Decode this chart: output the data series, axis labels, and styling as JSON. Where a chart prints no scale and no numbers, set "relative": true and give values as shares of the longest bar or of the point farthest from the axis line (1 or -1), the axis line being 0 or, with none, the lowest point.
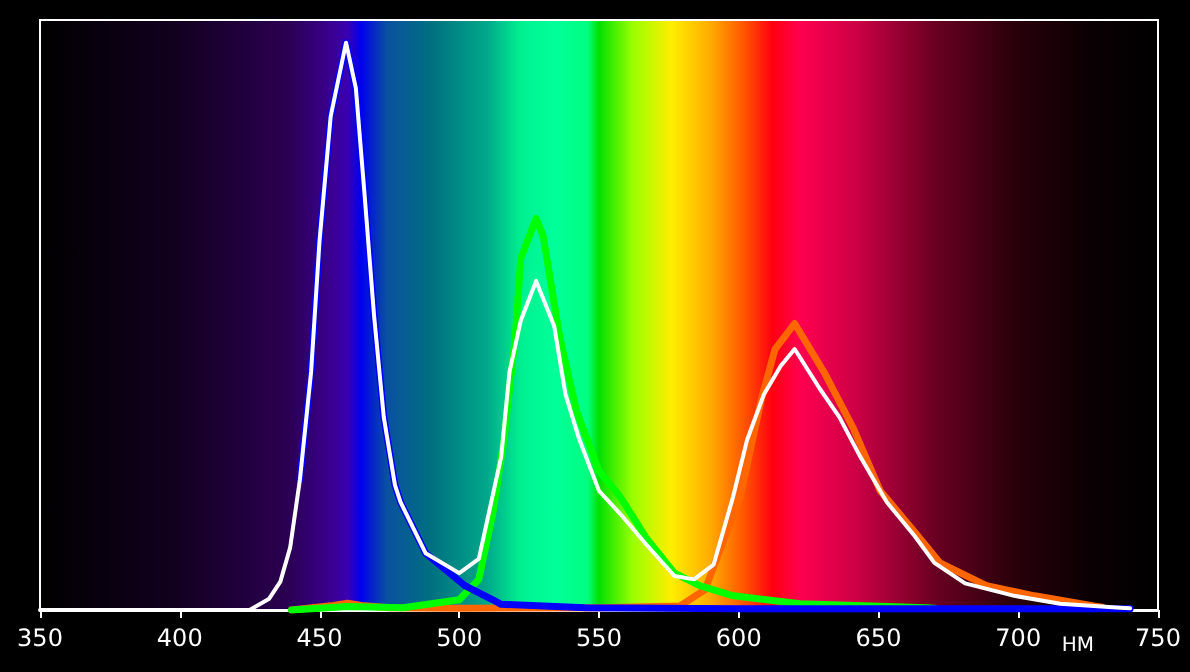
{
  "chart_data": {
    "type": "line",
    "xlabel": "НМ",
    "relative": true,
    "xlim": [
      350,
      750
    ],
    "xticks": [
      350,
      400,
      450,
      500,
      550,
      600,
      650,
      700,
      750
    ],
    "grid": false,
    "marker": "none",
    "line_style": "solid",
    "series": [
      {
        "color": "#ff6600",
        "x": [
          440,
          455,
          460,
          465,
          475,
          500,
          550,
          579,
          588,
          600.5,
          608,
          613,
          620,
          631,
          641,
          650.6,
          663,
          672,
          688.6,
          705.8,
          727,
          730
        ],
        "values": [
          0,
          0.008,
          0.012,
          0.008,
          0.004,
          0.003,
          0.004,
          0.007,
          0.036,
          0.2,
          0.37,
          0.46,
          0.505,
          0.415,
          0.32,
          0.21,
          0.137,
          0.083,
          0.043,
          0.025,
          0.007,
          0.005
        ]
      },
      {
        "color": "#00ff00",
        "x": [
          440,
          460,
          480,
          500,
          507,
          512,
          516,
          520,
          522,
          527.5,
          530,
          536,
          542,
          550,
          557.5,
          567,
          577,
          586,
          598,
          622,
          667,
          670
        ],
        "values": [
          0,
          0.006,
          0.004,
          0.018,
          0.054,
          0.17,
          0.3,
          0.48,
          0.62,
          0.69,
          0.66,
          0.48,
          0.35,
          0.245,
          0.2,
          0.126,
          0.065,
          0.043,
          0.025,
          0.011,
          0.004,
          0.003
        ]
      },
      {
        "color": "#0000ff",
        "x": [
          443,
          447,
          450,
          454,
          459.5,
          463,
          466,
          469.5,
          473,
          477,
          479,
          488,
          502,
          512,
          515,
          545,
          600,
          700,
          740
        ],
        "values": [
          0.23,
          0.42,
          0.65,
          0.87,
          1.0,
          0.92,
          0.74,
          0.52,
          0.34,
          0.22,
          0.19,
          0.1,
          0.043,
          0.018,
          0.01,
          0.004,
          0.002,
          0.002,
          0.002
        ]
      },
      {
        "color": "#ffffff",
        "x": [
          350,
          425,
          432,
          436,
          439.5,
          443,
          447,
          450,
          454,
          459.5,
          463,
          466,
          469.5,
          473,
          477,
          479,
          488,
          500,
          507,
          515,
          518,
          522,
          527.5,
          534,
          538,
          543,
          550,
          557.5,
          567,
          577,
          584,
          591,
          598,
          603,
          609,
          615,
          620,
          629,
          636,
          643.5,
          653,
          663,
          670,
          681,
          698.6,
          715,
          736.5,
          740
        ],
        "values": [
          0,
          0,
          0.02,
          0.05,
          0.11,
          0.23,
          0.42,
          0.65,
          0.87,
          1.0,
          0.92,
          0.74,
          0.52,
          0.34,
          0.22,
          0.19,
          0.1,
          0.065,
          0.09,
          0.27,
          0.42,
          0.51,
          0.58,
          0.5,
          0.38,
          0.3,
          0.21,
          0.17,
          0.115,
          0.06,
          0.054,
          0.08,
          0.2,
          0.3,
          0.38,
          0.43,
          0.46,
          0.39,
          0.34,
          0.27,
          0.19,
          0.13,
          0.083,
          0.047,
          0.025,
          0.011,
          0.004,
          0.003
        ]
      }
    ]
  }
}
